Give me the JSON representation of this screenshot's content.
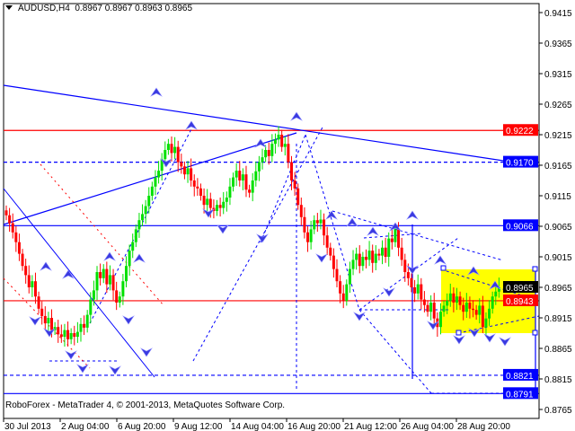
{
  "header": {
    "symbol": "AUDUSD,H4",
    "quote": "0.8967 0.8967 0.8963 0.8965"
  },
  "footer": {
    "copyright": "RoboForex - MetaTrader 4, © 2001-2013, MetaQuotes Software Corp."
  },
  "chart_data": {
    "type": "candlestick",
    "timeframe": "H4",
    "title": "AUDUSD,H4",
    "ylim": [
      0.875,
      0.943
    ],
    "y_ticks": [
      "0.9415",
      "0.9365",
      "0.9315",
      "0.9265",
      "0.9215",
      "0.9165",
      "0.9115",
      "0.9065",
      "0.9015",
      "0.8965",
      "0.8915",
      "0.8865",
      "0.8815",
      "0.8765"
    ],
    "x_ticks": [
      "30 Jul 2013",
      "2 Aug 04:00",
      "6 Aug 20:00",
      "9 Aug 12:00",
      "14 Aug 04:00",
      "16 Aug 20:00",
      "21 Aug 12:00",
      "26 Aug 04:00",
      "28 Aug 20:00"
    ],
    "closes": [
      0.9083,
      0.907,
      0.9055,
      0.9039,
      0.902,
      0.9,
      0.8985,
      0.8965,
      0.8975,
      0.895,
      0.893,
      0.8918,
      0.8906,
      0.8915,
      0.8895,
      0.89,
      0.8888,
      0.8884,
      0.8895,
      0.888,
      0.889,
      0.8884,
      0.8892,
      0.8905,
      0.8899,
      0.892,
      0.8945,
      0.896,
      0.899,
      0.898,
      0.8995,
      0.897,
      0.8985,
      0.896,
      0.894,
      0.895,
      0.8975,
      0.9,
      0.9025,
      0.9039,
      0.906,
      0.9075,
      0.9085,
      0.9098,
      0.9115,
      0.913,
      0.9145,
      0.9156,
      0.9175,
      0.919,
      0.92,
      0.9185,
      0.9195,
      0.917,
      0.9163,
      0.915,
      0.916,
      0.914,
      0.913,
      0.9127,
      0.9115,
      0.91,
      0.911,
      0.9095,
      0.909,
      0.91,
      0.9095,
      0.9105,
      0.9112,
      0.913,
      0.9145,
      0.9156,
      0.914,
      0.915,
      0.9125,
      0.912,
      0.914,
      0.9155,
      0.917,
      0.9178,
      0.919,
      0.918,
      0.92,
      0.9207,
      0.9215,
      0.9195,
      0.92,
      0.917,
      0.914,
      0.9127,
      0.91,
      0.908,
      0.9055,
      0.9039,
      0.906,
      0.9075,
      0.907,
      0.9076,
      0.905,
      0.903,
      0.9017,
      0.8995,
      0.8975,
      0.8955,
      0.8943,
      0.897,
      0.8995,
      0.901,
      0.902,
      0.9,
      0.9015,
      0.901,
      0.9025,
      0.9005,
      0.902,
      0.9017,
      0.903,
      0.9015,
      0.9045,
      0.9039,
      0.906,
      0.903,
      0.901,
      0.899,
      0.898,
      0.8965,
      0.8955,
      0.897,
      0.8945,
      0.8936,
      0.8925,
      0.894,
      0.8914,
      0.89,
      0.8925,
      0.8935,
      0.8943,
      0.8955,
      0.894,
      0.895,
      0.8936,
      0.8925,
      0.894,
      0.893,
      0.8928,
      0.892,
      0.8935,
      0.89,
      0.8914,
      0.893,
      0.895,
      0.8958,
      0.8965
    ],
    "price_levels": [
      {
        "value": "0.9222",
        "color": "#ff0000",
        "style": "solid"
      },
      {
        "value": "0.9170",
        "color": "#0000ff",
        "style": "dashed"
      },
      {
        "value": "0.9066",
        "color": "#0000ff",
        "style": "solid"
      },
      {
        "value": "0.8965",
        "color": "#000000",
        "style": "bid"
      },
      {
        "value": "0.8943",
        "color": "#ff0000",
        "style": "solid"
      },
      {
        "value": "0.8821",
        "color": "#0000ff",
        "style": "dashed"
      },
      {
        "value": "0.8791",
        "color": "#0000ff",
        "style": "solid"
      }
    ],
    "colors": {
      "bull": "#00e000",
      "bear": "#ff0000",
      "lines": "#0000ff",
      "target_box": "#ffff00"
    }
  }
}
